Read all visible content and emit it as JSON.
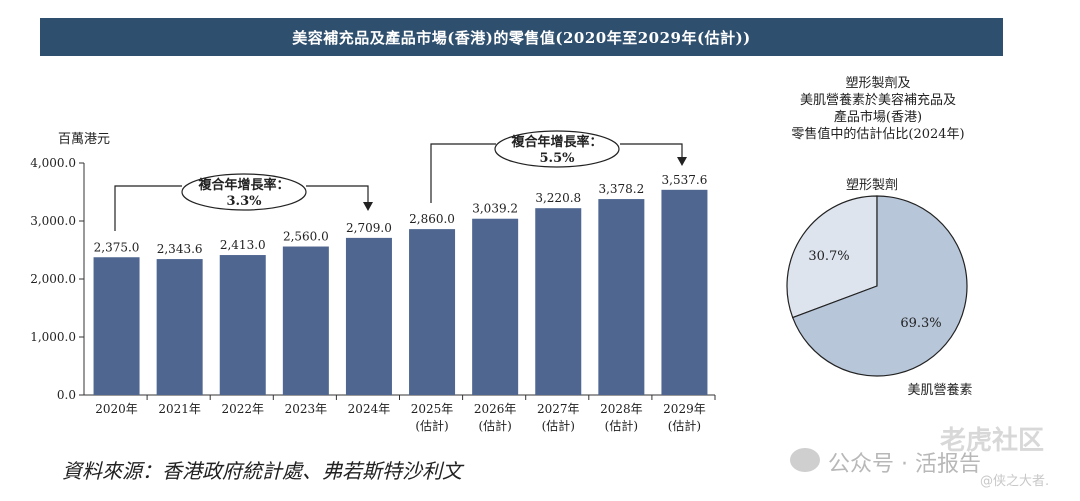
{
  "banner_title": "美容補充品及產品市場(香港)的零售值(2020年至2029年(估計))",
  "source_note": "資料來源：香港政府統計處、弗若斯特沙利文",
  "watermark": {
    "text1": "公众号 · 活报告",
    "text2": "老虎社区",
    "text3": "@侠之大者."
  },
  "colors": {
    "banner": "#2f4f6f",
    "bar": "#4e6690",
    "pie_light": "#dde4ee",
    "pie_dark": "#b7c6d9"
  },
  "chart_data": [
    {
      "type": "bar",
      "ylabel": "百萬港元",
      "ylim": [
        0,
        4000
      ],
      "yticks": [
        "0.0",
        "1,000.0",
        "2,000.0",
        "3,000.0",
        "4,000.0"
      ],
      "ytick_values": [
        0,
        1000,
        2000,
        3000,
        4000
      ],
      "categories": [
        "2020年",
        "2021年",
        "2022年",
        "2023年",
        "2024年",
        "2025年",
        "2026年",
        "2027年",
        "2028年",
        "2029年"
      ],
      "category_sublabels": [
        "",
        "",
        "",
        "",
        "",
        "(估計)",
        "(估計)",
        "(估計)",
        "(估計)",
        "(估計)"
      ],
      "values": [
        2375.0,
        2343.6,
        2413.0,
        2560.0,
        2709.0,
        2860.0,
        3039.2,
        3220.8,
        3378.2,
        3537.6
      ],
      "value_labels": [
        "2,375.0",
        "2,343.6",
        "2,413.0",
        "2,560.0",
        "2,709.0",
        "2,860.0",
        "3,039.2",
        "3,220.8",
        "3,378.2",
        "3,537.6"
      ],
      "annotations": [
        {
          "label": "複合年增長率：",
          "value": "3.3%",
          "from": "2020年",
          "to": "2024年"
        },
        {
          "label": "複合年增長率：",
          "value": "5.5%",
          "from": "2025年",
          "to": "2029年"
        }
      ],
      "grid": false
    },
    {
      "type": "pie",
      "title_lines": [
        "塑形製劑及",
        "美肌營養素於美容補充品及",
        "產品市場(香港)",
        "零售值中的估計佔比(2024年)"
      ],
      "slices": [
        {
          "label": "塑形製劑",
          "value": 30.7,
          "value_label": "30.7%"
        },
        {
          "label": "美肌營養素",
          "value": 69.3,
          "value_label": "69.3%"
        }
      ]
    }
  ]
}
